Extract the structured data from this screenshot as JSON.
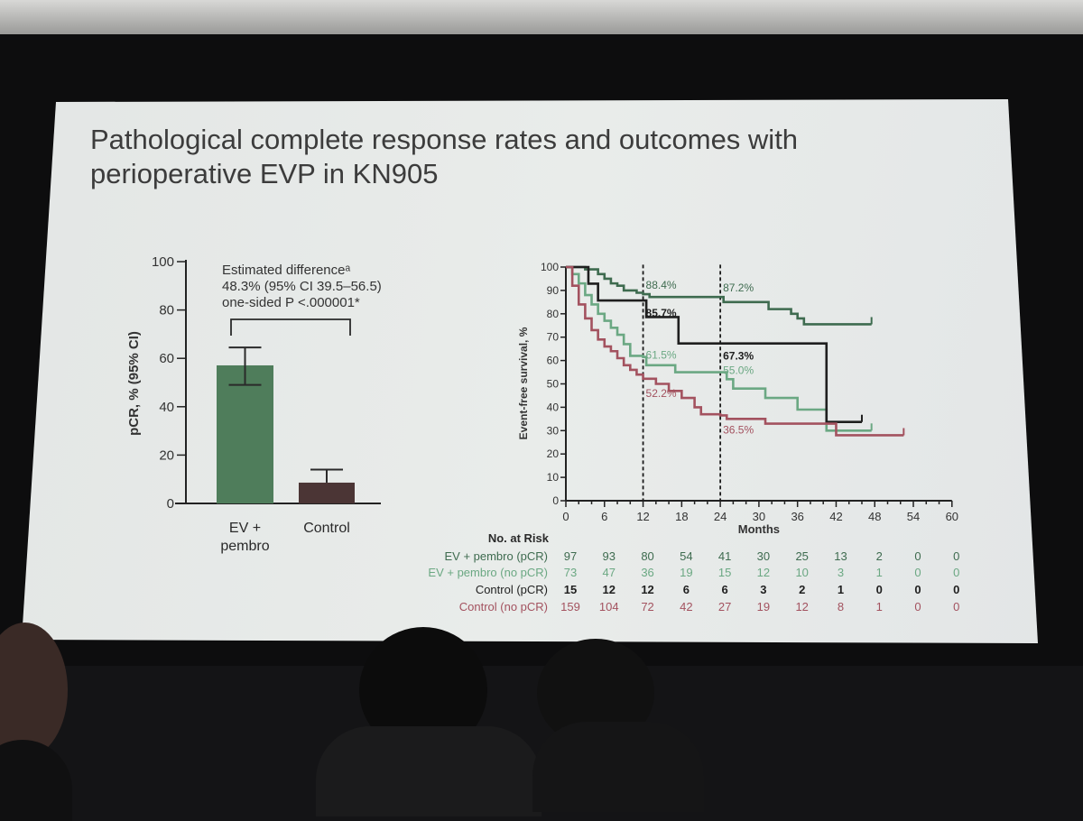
{
  "slide": {
    "title_line1": "Pathological complete response rates and outcomes with",
    "title_line2": "perioperative EVP in KN905"
  },
  "chart_data": [
    {
      "type": "bar",
      "ylabel": "pCR, % (95% CI)",
      "ylim": [
        0,
        100
      ],
      "yticks": [
        "0",
        "20",
        "40",
        "60",
        "80",
        "100"
      ],
      "categories": [
        "EV +\npembro",
        "Control"
      ],
      "category_lines": [
        [
          "EV +",
          "pembro"
        ],
        [
          "Control"
        ]
      ],
      "values": [
        57.1,
        8.6
      ],
      "ci_low": [
        49.0,
        4.6
      ],
      "ci_high": [
        64.5,
        14.0
      ],
      "colors": [
        "#4f7d5b",
        "#4b3535"
      ],
      "annotation": [
        "Estimated differenceᵃ",
        "48.3% (95% CI 39.5–56.5)",
        "one-sided P <.000001*"
      ]
    },
    {
      "type": "line",
      "subtype": "kaplan-meier",
      "xlabel": "Months",
      "ylabel": "Event-free survival, %",
      "xlim": [
        0,
        60
      ],
      "ylim": [
        0,
        100
      ],
      "xticks": [
        "0",
        "6",
        "12",
        "18",
        "24",
        "30",
        "36",
        "42",
        "48",
        "54",
        "60"
      ],
      "yticks": [
        "0",
        "10",
        "20",
        "30",
        "40",
        "50",
        "60",
        "70",
        "80",
        "90",
        "100"
      ],
      "reference_lines_x": [
        12,
        24
      ],
      "grid": false,
      "series": [
        {
          "name": "EV + pembro (pCR)",
          "color": "#3e6b4f",
          "steps": [
            [
              0,
              100
            ],
            [
              3,
              99
            ],
            [
              5,
              97
            ],
            [
              6,
              95
            ],
            [
              7,
              93
            ],
            [
              8,
              92
            ],
            [
              9,
              90
            ],
            [
              11,
              89
            ],
            [
              12,
              88.4
            ],
            [
              13,
              87.2
            ],
            [
              24.5,
              85
            ],
            [
              31.5,
              82
            ],
            [
              35,
              80
            ],
            [
              36,
              78
            ],
            [
              37,
              75.5
            ],
            [
              47.5,
              75.5
            ]
          ],
          "labels": [
            {
              "x": 12,
              "text": "88.4%"
            },
            {
              "x": 24,
              "text": "87.2%"
            }
          ],
          "at_risk": [
            "97",
            "93",
            "80",
            "54",
            "41",
            "30",
            "25",
            "13",
            "2",
            "0",
            "0"
          ]
        },
        {
          "name": "EV + pembro (no pCR)",
          "color": "#6ba883",
          "steps": [
            [
              0,
              100
            ],
            [
              1,
              97
            ],
            [
              2,
              93
            ],
            [
              3,
              88
            ],
            [
              4,
              84
            ],
            [
              5,
              80
            ],
            [
              6,
              77
            ],
            [
              7,
              74
            ],
            [
              8,
              71
            ],
            [
              9,
              67
            ],
            [
              10,
              62
            ],
            [
              12,
              61.5
            ],
            [
              12.5,
              58
            ],
            [
              17,
              55
            ],
            [
              25,
              52
            ],
            [
              26,
              48
            ],
            [
              31,
              44
            ],
            [
              36,
              39
            ],
            [
              40.5,
              30
            ],
            [
              47.5,
              30
            ]
          ],
          "labels": [
            {
              "x": 12,
              "text": "61.5%"
            },
            {
              "x": 24,
              "text": "55.0%"
            }
          ],
          "at_risk": [
            "73",
            "47",
            "36",
            "19",
            "15",
            "12",
            "10",
            "3",
            "1",
            "0",
            "0"
          ]
        },
        {
          "name": "Control (pCR)",
          "color": "#1f1f1f",
          "steps": [
            [
              0,
              100
            ],
            [
              3.5,
              92.9
            ],
            [
              5,
              85.7
            ],
            [
              12.5,
              78.6
            ],
            [
              17.5,
              67.3
            ],
            [
              40.5,
              33.7
            ],
            [
              46,
              33.7
            ]
          ],
          "labels": [
            {
              "x": 12,
              "text": "85.7%"
            },
            {
              "x": 24,
              "text": "67.3%"
            }
          ],
          "at_risk": [
            "15",
            "12",
            "12",
            "6",
            "6",
            "3",
            "2",
            "1",
            "0",
            "0",
            "0"
          ]
        },
        {
          "name": "Control (no pCR)",
          "color": "#a3525f",
          "steps": [
            [
              0,
              100
            ],
            [
              1,
              92
            ],
            [
              2,
              84
            ],
            [
              3,
              78
            ],
            [
              4,
              73
            ],
            [
              5,
              69
            ],
            [
              6,
              66
            ],
            [
              7,
              64
            ],
            [
              8,
              61
            ],
            [
              9,
              58
            ],
            [
              10,
              56
            ],
            [
              11,
              54
            ],
            [
              12,
              52.2
            ],
            [
              14,
              50
            ],
            [
              16,
              47
            ],
            [
              18,
              44
            ],
            [
              20,
              40
            ],
            [
              21,
              37
            ],
            [
              24,
              36.5
            ],
            [
              25,
              35
            ],
            [
              31,
              33
            ],
            [
              42,
              28
            ],
            [
              52.5,
              28
            ]
          ],
          "labels": [
            {
              "x": 12,
              "text": "52.2%"
            },
            {
              "x": 24,
              "text": "36.5%"
            }
          ],
          "at_risk": [
            "159",
            "104",
            "72",
            "42",
            "27",
            "19",
            "12",
            "8",
            "1",
            "0",
            "0"
          ]
        }
      ],
      "at_risk_title": "No. at Risk"
    }
  ]
}
